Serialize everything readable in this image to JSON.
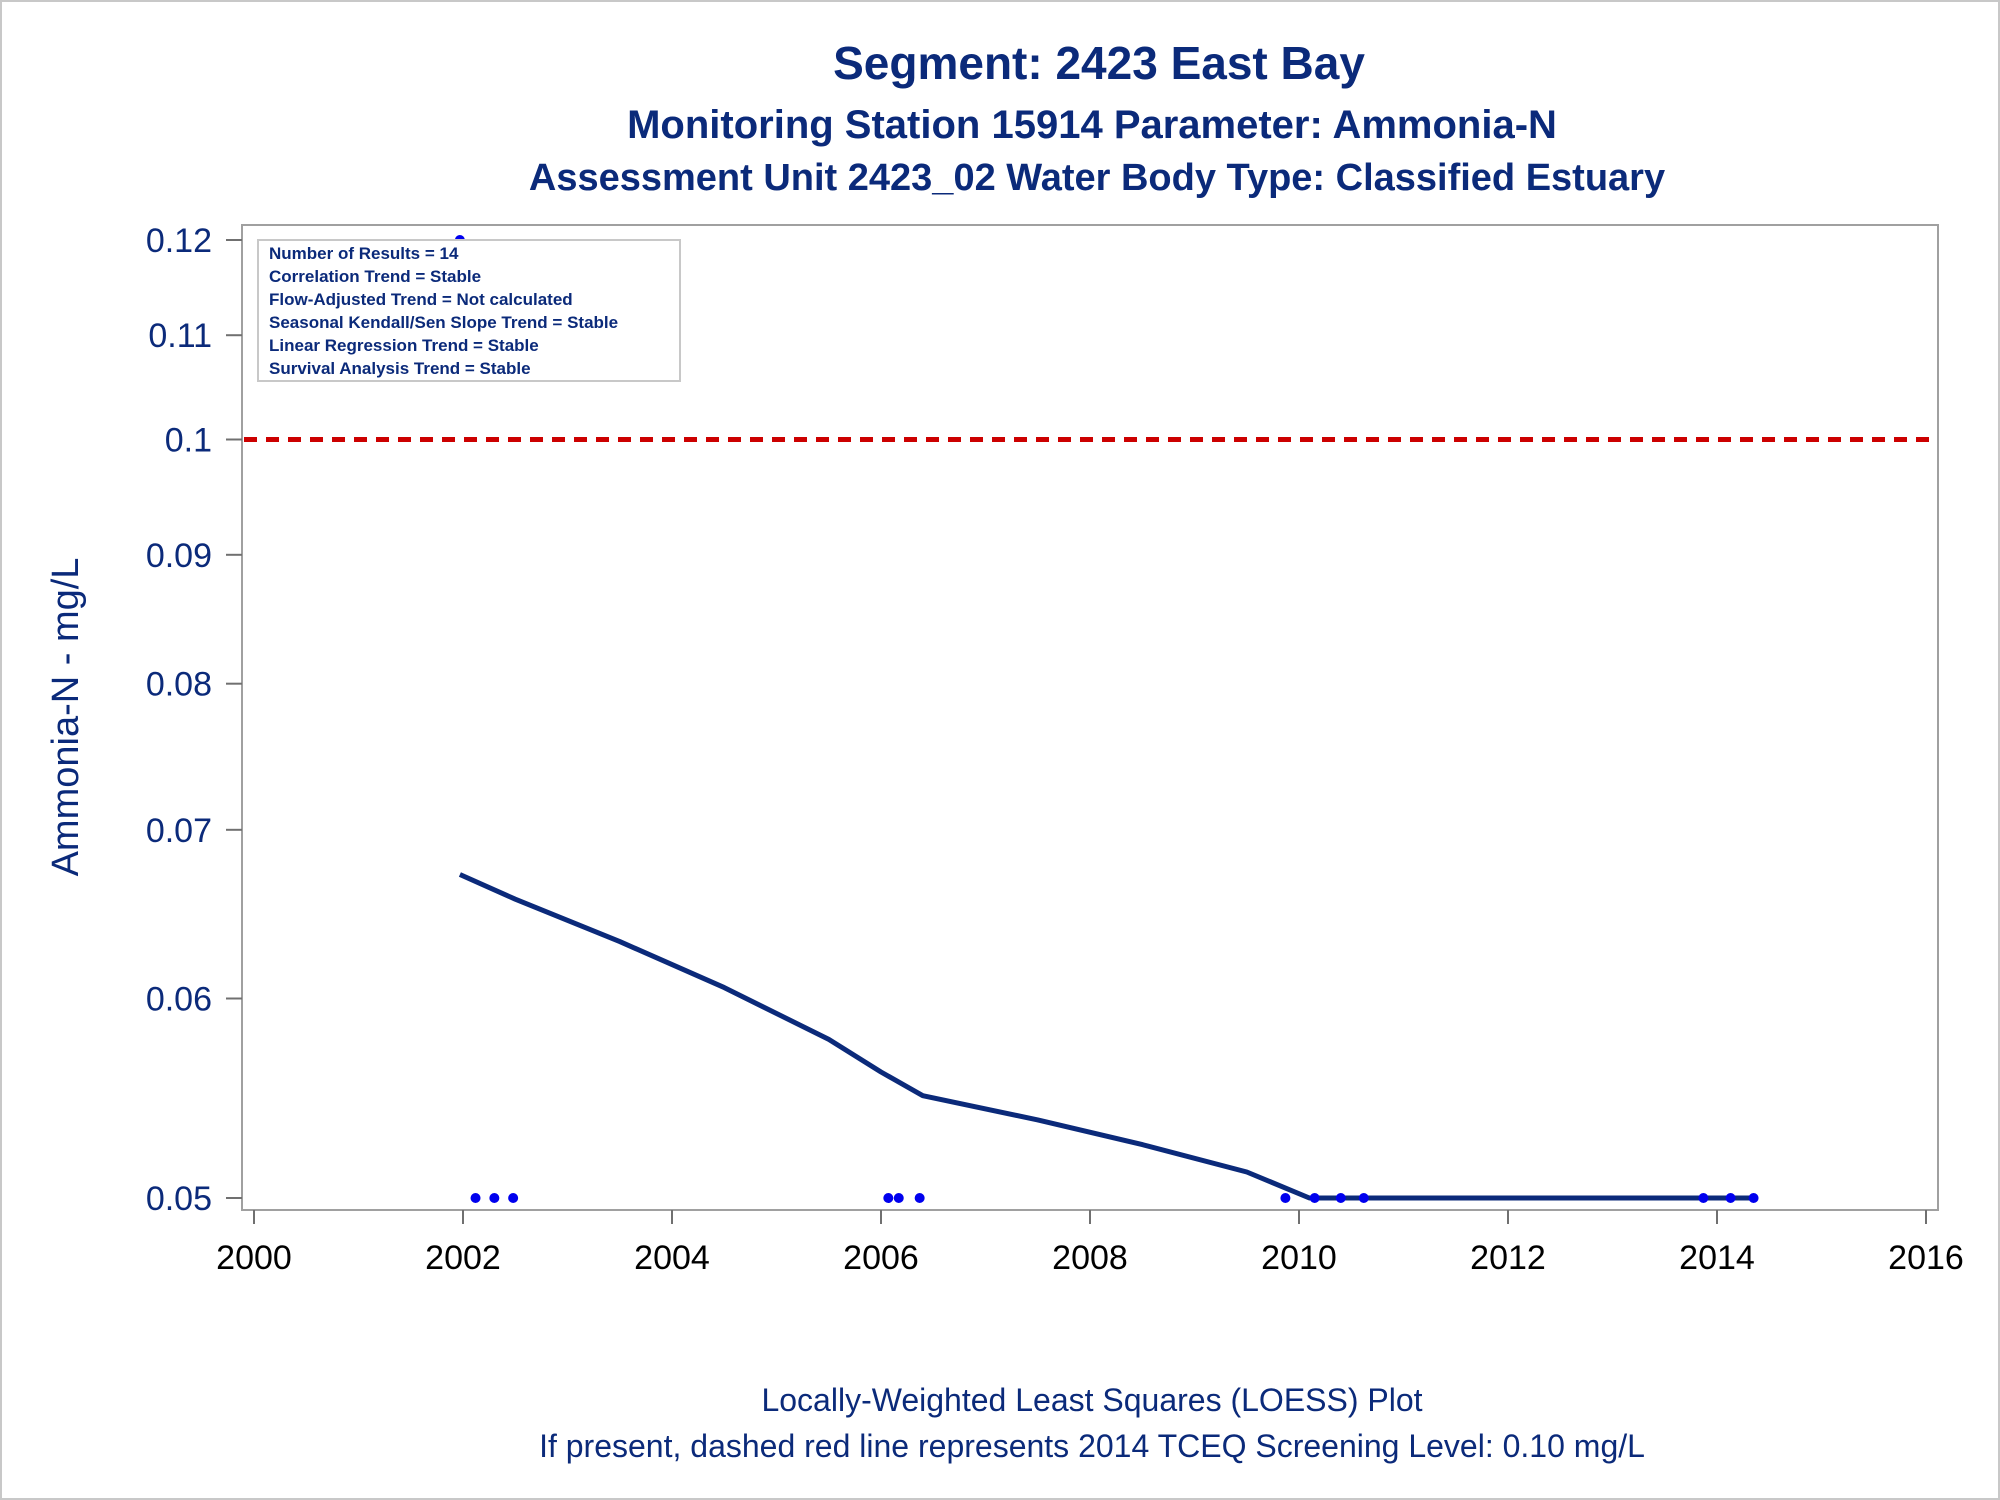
{
  "chart_data": {
    "type": "scatter",
    "title": "Segment: 2423  East Bay",
    "subtitle_1": "Monitoring Station 15914 Parameter: Ammonia-N",
    "subtitle_2": "Assessment Unit 2423_02   Water Body Type: Classified Estuary",
    "ylabel": "Ammonia-N - mg/L",
    "xlabel": "",
    "y_scale": "log",
    "xlim": [
      2000,
      2016
    ],
    "ylim": [
      0.05,
      0.12
    ],
    "x_ticks": [
      "2000",
      "2002",
      "2004",
      "2006",
      "2008",
      "2010",
      "2012",
      "2014",
      "2016"
    ],
    "y_ticks": [
      "0.05",
      "0.06",
      "0.07",
      "0.08",
      "0.09",
      "0.1",
      "0.11",
      "0.12"
    ],
    "legend_placement": "top-left",
    "stats": [
      "Number of Results = 14",
      "Correlation Trend = Stable",
      "Flow-Adjusted Trend = Not calculated",
      "Seasonal Kendall/Sen Slope Trend = Stable",
      "Linear Regression Trend = Stable",
      "Survival Analysis Trend = Stable"
    ],
    "series": [
      {
        "kind": "points",
        "x": [
          2001.97,
          2002.12,
          2002.3,
          2002.48,
          2006.07,
          2006.17,
          2006.37,
          2009.87,
          2010.15,
          2010.4,
          2010.62,
          2013.87,
          2014.13,
          2014.35
        ],
        "y": [
          0.12,
          0.05,
          0.05,
          0.05,
          0.05,
          0.05,
          0.05,
          0.05,
          0.05,
          0.05,
          0.05,
          0.05,
          0.05,
          0.05
        ]
      },
      {
        "kind": "loess",
        "x": [
          2001.97,
          2002.5,
          2003.5,
          2004.5,
          2005.5,
          2006.0,
          2006.4,
          2007.5,
          2008.5,
          2009.5,
          2010.1,
          2010.6,
          2012.0,
          2014.35
        ],
        "y": [
          0.0672,
          0.0657,
          0.0632,
          0.0606,
          0.0578,
          0.0561,
          0.0549,
          0.0537,
          0.0525,
          0.0512,
          0.05,
          0.05,
          0.05,
          0.05
        ]
      }
    ],
    "reference_line": {
      "y": 0.1,
      "style": "dashed",
      "color": "#cc0000"
    },
    "footer_1": "Locally-Weighted Least Squares (LOESS) Plot",
    "footer_2": "If present, dashed red line represents 2014 TCEQ Screening Level: 0.10 mg/L"
  },
  "colors": {
    "text": "#0b2a7a",
    "points": "#0000ee",
    "loess": "#0b2a7a",
    "reference": "#cc0000",
    "frame": "#a0a0a0"
  }
}
